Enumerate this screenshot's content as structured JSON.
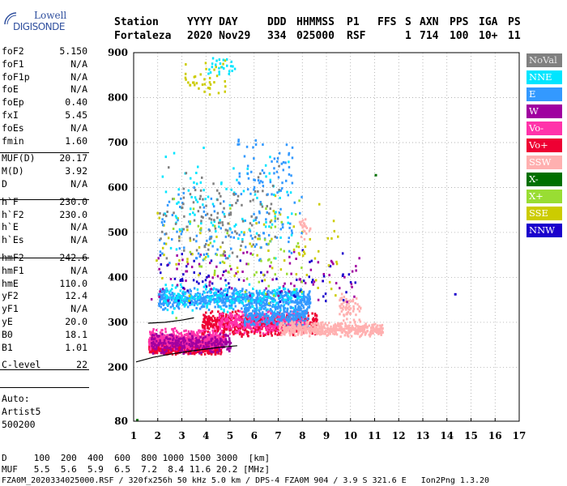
{
  "logo": {
    "line1": "Lowell",
    "line2": "DIGISONDE",
    "color": "#2f4f9e"
  },
  "header": {
    "labels": [
      "Station",
      "YYYY DAY",
      "DDD",
      "HHMMSS",
      "P1",
      "FFS",
      "S",
      "AXN",
      "PPS",
      "IGA",
      "PS"
    ],
    "values": [
      "Fortaleza",
      "2020 Nov29",
      "334",
      "025000",
      "RSF",
      "1",
      "714",
      "100",
      "10+",
      "11"
    ]
  },
  "params": [
    {
      "name": "foF2",
      "value": "5.150"
    },
    {
      "name": "foF1",
      "value": "N/A"
    },
    {
      "name": "foF1p",
      "value": "N/A"
    },
    {
      "name": "foE",
      "value": "N/A"
    },
    {
      "name": "foEp",
      "value": "0.40"
    },
    {
      "name": "fxI",
      "value": "5.45"
    },
    {
      "name": "foEs",
      "value": "N/A"
    },
    {
      "name": "fmin",
      "value": "1.60"
    },
    {
      "name": "MUF(D)",
      "value": "20.17"
    },
    {
      "name": "M(D)",
      "value": "3.92"
    },
    {
      "name": "D",
      "value": "N/A"
    },
    {
      "name": "h`F",
      "value": "230.0"
    },
    {
      "name": "h`F2",
      "value": "230.0"
    },
    {
      "name": "h`E",
      "value": "N/A"
    },
    {
      "name": "h`Es",
      "value": "N/A"
    },
    {
      "name": "hmF2",
      "value": "242.6"
    },
    {
      "name": "hmF1",
      "value": "N/A"
    },
    {
      "name": "hmE",
      "value": "110.0"
    },
    {
      "name": "yF2",
      "value": "12.4"
    },
    {
      "name": "yF1",
      "value": "N/A"
    },
    {
      "name": "yE",
      "value": "20.0"
    },
    {
      "name": "B0",
      "value": "18.1"
    },
    {
      "name": "B1",
      "value": "1.01"
    },
    {
      "name": "C-level",
      "value": "22"
    }
  ],
  "auto": {
    "line1": "Auto:",
    "line2": "Artist5",
    "line3": "500200"
  },
  "legend": [
    {
      "label": "NoVal",
      "color": "#808080"
    },
    {
      "label": "NNE",
      "color": "#00e5ff"
    },
    {
      "label": "E",
      "color": "#3399ff"
    },
    {
      "label": "W",
      "color": "#a000a0"
    },
    {
      "label": "Vo-",
      "color": "#ff33aa"
    },
    {
      "label": "Vo+",
      "color": "#ee0033"
    },
    {
      "label": "SSW",
      "color": "#ffb0b0"
    },
    {
      "label": "X-",
      "color": "#007000"
    },
    {
      "label": "X+",
      "color": "#99dd33"
    },
    {
      "label": "SSE",
      "color": "#cccc00"
    },
    {
      "label": "NNW",
      "color": "#1a00cc"
    }
  ],
  "footer": {
    "d_label": "D",
    "d_values": [
      "100",
      "200",
      "400",
      "600",
      "800",
      "1000",
      "1500",
      "3000",
      "[km]"
    ],
    "muf_label": "MUF",
    "muf_values": [
      "5.5",
      "5.6",
      "5.9",
      "6.5",
      "7.2",
      "8.4",
      "11.6",
      "20.2",
      "[MHz]"
    ],
    "status": "FZA0M_2020334025000.RSF / 320fx256h 50 kHz 5.0 km / DPS-4 FZA0M 904 / 3.9 S 321.6 E   Ion2Png 1.3.20"
  },
  "chart_data": {
    "type": "scatter",
    "title": "",
    "xlabel": "",
    "ylabel": "",
    "xlim": [
      1,
      17
    ],
    "ylim": [
      80,
      900
    ],
    "xticks": [
      1,
      2,
      3,
      4,
      5,
      6,
      7,
      8,
      9,
      10,
      11,
      12,
      13,
      14,
      15,
      16,
      17
    ],
    "yticks": [
      80,
      200,
      300,
      400,
      500,
      600,
      700,
      800,
      900
    ],
    "grid": "dotted",
    "legend_position": "right",
    "clusters": [
      {
        "polarization": "Vo+",
        "x": [
          1.6,
          4.6
        ],
        "y": [
          230,
          270
        ],
        "density": 900
      },
      {
        "polarization": "Vo-",
        "x": [
          1.6,
          4.8
        ],
        "y": [
          240,
          290
        ],
        "density": 500
      },
      {
        "polarization": "W",
        "x": [
          1.7,
          5.0
        ],
        "y": [
          230,
          280
        ],
        "density": 250
      },
      {
        "polarization": "Vo+",
        "x": [
          3.8,
          8.6
        ],
        "y": [
          270,
          330
        ],
        "density": 600
      },
      {
        "polarization": "Vo-",
        "x": [
          4.5,
          8.2
        ],
        "y": [
          275,
          330
        ],
        "density": 350
      },
      {
        "polarization": "E",
        "x": [
          2.0,
          8.3
        ],
        "y": [
          330,
          380
        ],
        "density": 650
      },
      {
        "polarization": "NNE",
        "x": [
          2.2,
          8.0
        ],
        "y": [
          320,
          390
        ],
        "density": 200
      },
      {
        "polarization": "E",
        "x": [
          5.5,
          8.2
        ],
        "y": [
          290,
          350
        ],
        "density": 250
      },
      {
        "polarization": "SSW",
        "x": [
          7.0,
          11.3
        ],
        "y": [
          270,
          305
        ],
        "density": 450
      },
      {
        "polarization": "SSW",
        "x": [
          9.5,
          10.4
        ],
        "y": [
          300,
          370
        ],
        "density": 60
      },
      {
        "polarization": "W",
        "x": [
          1.7,
          10.5
        ],
        "y": [
          330,
          480
        ],
        "density": 90
      },
      {
        "polarization": "NNW",
        "x": [
          2.0,
          10.2
        ],
        "y": [
          330,
          470
        ],
        "density": 70
      },
      {
        "polarization": "SSE",
        "x": [
          1.8,
          9.5
        ],
        "y": [
          330,
          600
        ],
        "density": 90
      },
      {
        "polarization": "E",
        "x": [
          2.0,
          8.0
        ],
        "y": [
          420,
          620
        ],
        "density": 120
      },
      {
        "polarization": "NNE",
        "x": [
          2.0,
          7.6
        ],
        "y": [
          440,
          700
        ],
        "density": 100
      },
      {
        "polarization": "NoVal",
        "x": [
          2.0,
          7.0
        ],
        "y": [
          420,
          660
        ],
        "density": 120
      },
      {
        "polarization": "X+",
        "x": [
          2.5,
          8.0
        ],
        "y": [
          300,
          600
        ],
        "density": 60
      },
      {
        "polarization": "E",
        "x": [
          5.2,
          7.6
        ],
        "y": [
          560,
          720
        ],
        "density": 60
      },
      {
        "polarization": "SSE",
        "x": [
          3.1,
          4.8
        ],
        "y": [
          800,
          890
        ],
        "density": 40
      },
      {
        "polarization": "NNE",
        "x": [
          4.0,
          5.2
        ],
        "y": [
          840,
          900
        ],
        "density": 25
      },
      {
        "polarization": "SSW",
        "x": [
          7.8,
          8.3
        ],
        "y": [
          470,
          550
        ],
        "density": 20
      }
    ],
    "isolated_points": [
      {
        "polarization": "X-",
        "x": 11.0,
        "y": 630
      },
      {
        "polarization": "NNW",
        "x": 14.3,
        "y": 365
      },
      {
        "polarization": "X-",
        "x": 1.1,
        "y": 85
      }
    ],
    "trace_curves": [
      {
        "name": "",
        "color": "#000000",
        "points": [
          [
            1.1,
            212
          ],
          [
            1.8,
            222
          ],
          [
            2.5,
            229
          ],
          [
            3.5,
            237
          ],
          [
            4.5,
            244
          ],
          [
            5.3,
            248
          ]
        ]
      },
      {
        "name": "",
        "color": "#000000",
        "points": [
          [
            1.6,
            298
          ],
          [
            2.3,
            300
          ],
          [
            3.0,
            305
          ],
          [
            3.5,
            310
          ]
        ]
      }
    ]
  }
}
